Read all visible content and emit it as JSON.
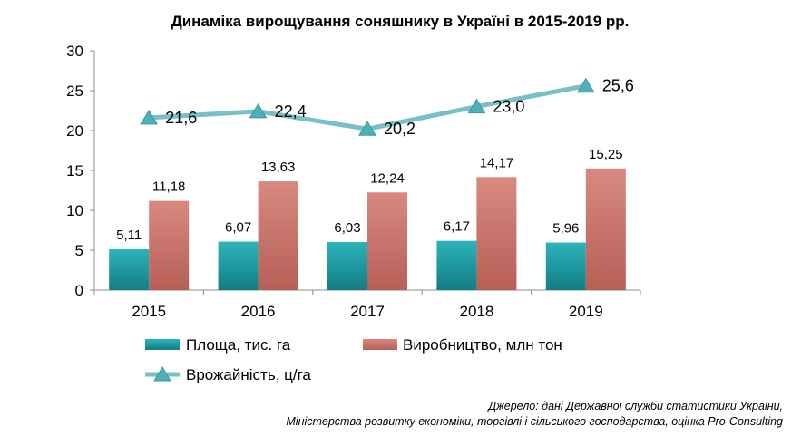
{
  "chart_data": {
    "type": "bar",
    "title": "Динаміка вирощування соняшнику в Україні в 2015-2019 рр.",
    "categories": [
      "2015",
      "2016",
      "2017",
      "2018",
      "2019"
    ],
    "ylim": [
      0,
      30
    ],
    "yticks": [
      "0",
      "5",
      "10",
      "15",
      "20",
      "25",
      "30"
    ],
    "grid": false,
    "legend_position": "bottom",
    "series": [
      {
        "name": "Площа,  тис. га",
        "kind": "bar",
        "color": "#1f9ea6",
        "values": [
          5.11,
          6.07,
          6.03,
          6.17,
          5.96
        ],
        "labels": [
          "5,11",
          "6,07",
          "6,03",
          "6,17",
          "5,96"
        ]
      },
      {
        "name": "Виробництво, млн тон",
        "kind": "bar",
        "color": "#c8736a",
        "values": [
          11.18,
          13.63,
          12.24,
          14.17,
          15.25
        ],
        "labels": [
          "11,18",
          "13,63",
          "12,24",
          "14,17",
          "15,25"
        ]
      },
      {
        "name": "Врожайність, ц/га",
        "kind": "line",
        "color": "#79c0c6",
        "marker_color": "#4fb0b8",
        "values": [
          21.6,
          22.4,
          20.2,
          23.0,
          25.6
        ],
        "labels": [
          "21,6",
          "22,4",
          "20,2",
          "23,0",
          "25,6"
        ]
      }
    ]
  },
  "source": {
    "line1": "Джерело: дані Державної служби статистики України,",
    "line2": "Міністерства розвитку економіки, торгівлі і сільського господарства, оцінка Pro-Consulting"
  }
}
